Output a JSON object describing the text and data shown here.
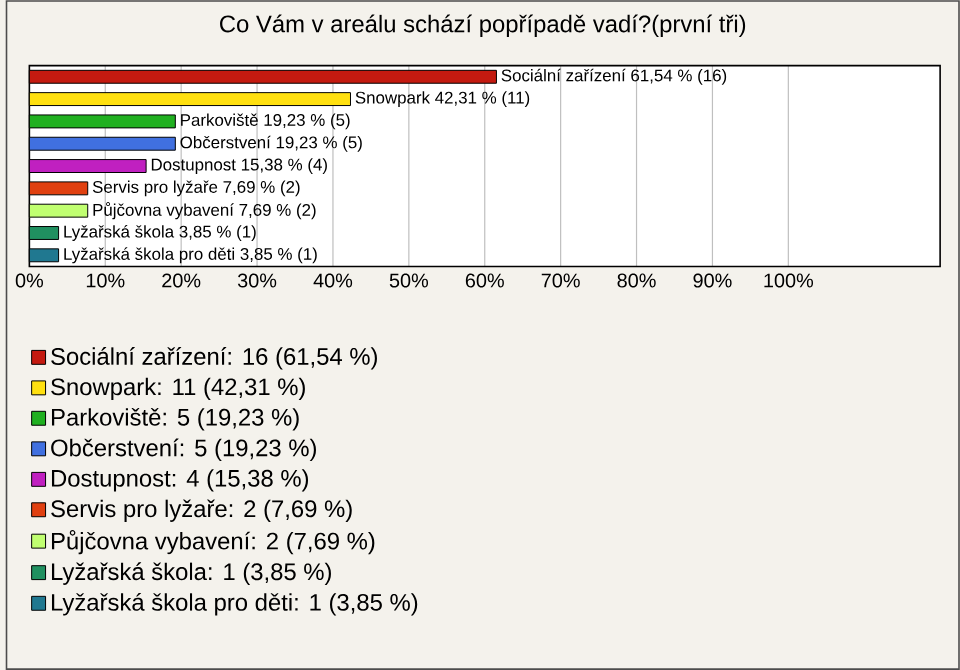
{
  "chart_data": {
    "type": "bar",
    "orientation": "horizontal",
    "title": "Co Vám v areálu schází popřípadě vadí?(první tři)",
    "categories": [
      null,
      null,
      null,
      null,
      null,
      null,
      null,
      null,
      null
    ],
    "series": [
      {
        "name": "Sociální zařízení: 16 (61,54 %)",
        "color": "#c41a10",
        "values": [
          61.54,
          null,
          null,
          null,
          null,
          null,
          null,
          null,
          null
        ],
        "value_labels": [
          "Sociální zařízení 61,54 % (16)",
          null,
          null,
          null,
          null,
          null,
          null,
          null,
          null
        ]
      },
      {
        "name": "Snowpark: 11 (42,31 %)",
        "color": "#ffe010",
        "values": [
          null,
          42.31,
          null,
          null,
          null,
          null,
          null,
          null,
          null
        ],
        "value_labels": [
          null,
          "Snowpark 42,31 % (11)",
          null,
          null,
          null,
          null,
          null,
          null,
          null
        ]
      },
      {
        "name": "Parkoviště: 5 (19,23 %)",
        "color": "#20b020",
        "values": [
          null,
          null,
          19.23,
          null,
          null,
          null,
          null,
          null,
          null
        ],
        "value_labels": [
          null,
          null,
          "Parkoviště 19,23 % (5)",
          null,
          null,
          null,
          null,
          null,
          null
        ]
      },
      {
        "name": "Občerstvení: 5 (19,23 %)",
        "color": "#4070e0",
        "values": [
          null,
          null,
          null,
          19.23,
          null,
          null,
          null,
          null,
          null
        ],
        "value_labels": [
          null,
          null,
          null,
          "Občerstvení 19,23 % (5)",
          null,
          null,
          null,
          null,
          null
        ]
      },
      {
        "name": "Dostupnost: 4 (15,38 %)",
        "color": "#c020c0",
        "values": [
          null,
          null,
          null,
          null,
          15.38,
          null,
          null,
          null,
          null
        ],
        "value_labels": [
          null,
          null,
          null,
          null,
          "Dostupnost 15,38 % (4)",
          null,
          null,
          null,
          null
        ]
      },
      {
        "name": "Servis pro lyžaře: 2 (7,69 %)",
        "color": "#e04010",
        "values": [
          null,
          null,
          null,
          null,
          null,
          7.69,
          null,
          null,
          null
        ],
        "value_labels": [
          null,
          null,
          null,
          null,
          null,
          "Servis pro lyžaře 7,69 % (2)",
          null,
          null,
          null
        ]
      },
      {
        "name": "Půjčovna vybavení: 2 (7,69 %)",
        "color": "#c0ff70",
        "values": [
          null,
          null,
          null,
          null,
          null,
          null,
          7.69,
          null,
          null
        ],
        "value_labels": [
          null,
          null,
          null,
          null,
          null,
          null,
          "Půjčovna vybavení 7,69 % (2)",
          null,
          null
        ]
      },
      {
        "name": "Lyžařská škola: 1 (3,85 %)",
        "color": "#209060",
        "values": [
          null,
          null,
          null,
          null,
          null,
          null,
          null,
          3.85,
          null
        ],
        "value_labels": [
          null,
          null,
          null,
          null,
          null,
          null,
          null,
          "Lyžařská škola 3,85 % (1)",
          null
        ]
      },
      {
        "name": "Lyžařská škola pro děti: 1 (3,85 %)",
        "color": "#207890",
        "values": [
          null,
          null,
          null,
          null,
          null,
          null,
          null,
          null,
          3.85
        ],
        "value_labels": [
          null,
          null,
          null,
          null,
          null,
          null,
          null,
          null,
          "Lyžařská škola pro děti 3,85 % (1)"
        ]
      }
    ],
    "xlim": [
      0,
      120
    ],
    "xticks": [
      {
        "value": 0,
        "label": "0%"
      },
      {
        "value": 10,
        "label": "10%"
      },
      {
        "value": 20,
        "label": "20%"
      },
      {
        "value": 30,
        "label": "30%"
      },
      {
        "value": 40,
        "label": "40%"
      },
      {
        "value": 50,
        "label": "50%"
      },
      {
        "value": 60,
        "label": "60%"
      },
      {
        "value": 70,
        "label": "70%"
      },
      {
        "value": 80,
        "label": "80%"
      },
      {
        "value": 90,
        "label": "90%"
      },
      {
        "value": 100,
        "label": "100%"
      }
    ],
    "grid": "x",
    "legend": "bottom",
    "tick_labels": "x"
  }
}
